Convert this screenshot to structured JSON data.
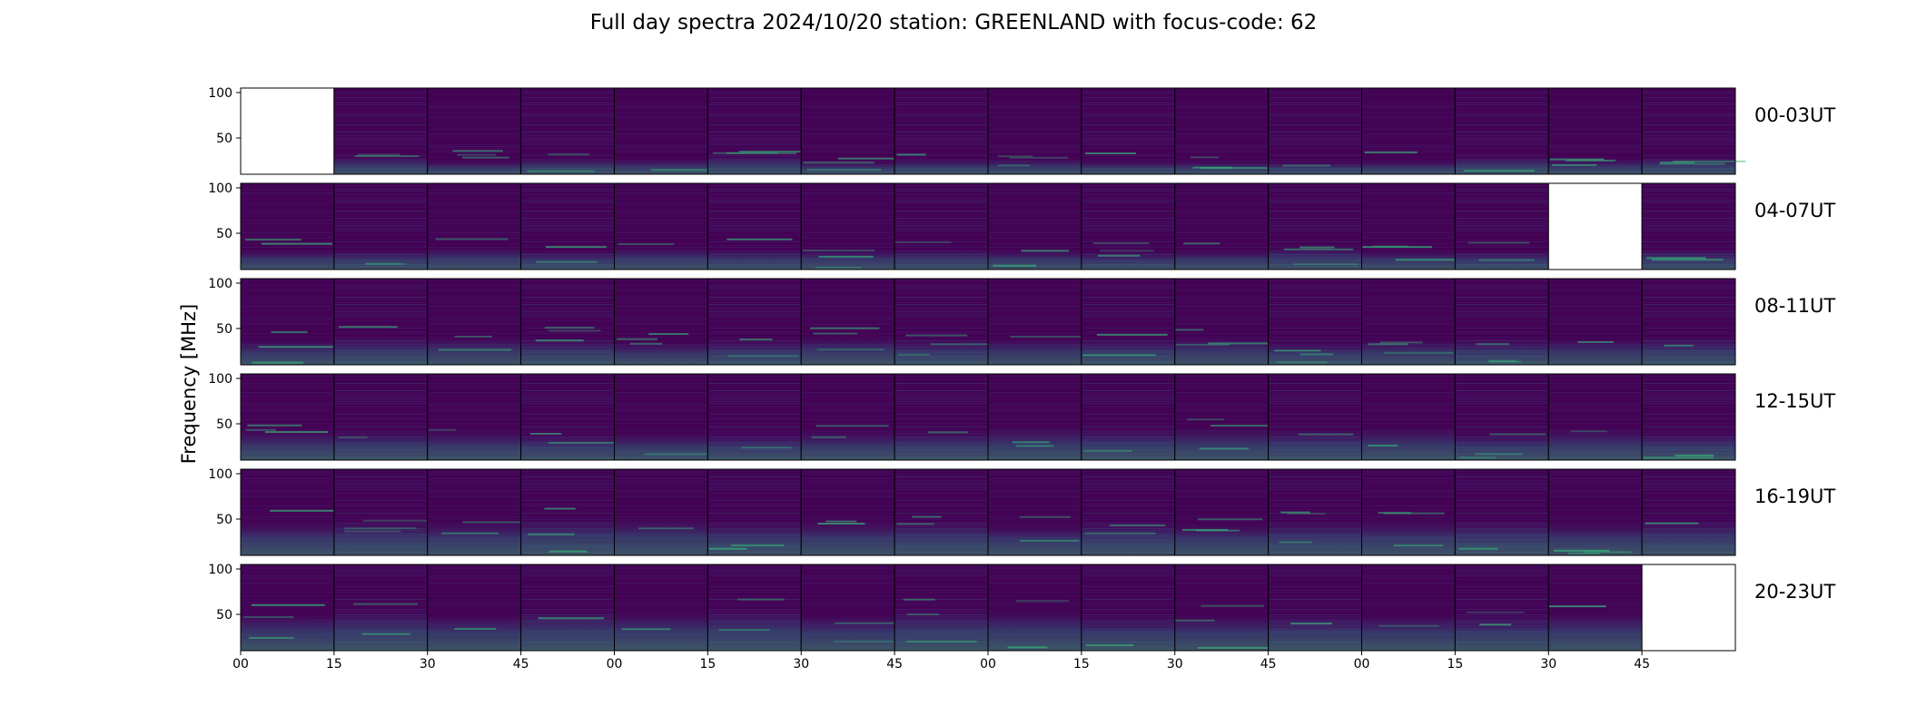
{
  "title": "Full day spectra 2024/10/20 station: GREENLAND with focus-code: 62",
  "colors": {
    "background": "#440154",
    "low": "#46075a",
    "high": "#35b779",
    "empty": "#ffffff"
  },
  "chart_data": {
    "type": "heatmap",
    "title": "Full day spectra 2024/10/20 station: GREENLAND with focus-code: 62",
    "ylabel": "Frequency [MHz]",
    "ylim": [
      10,
      105
    ],
    "yticks": [
      50,
      100
    ],
    "xticks": [
      "00",
      "15",
      "30",
      "45",
      "00",
      "15",
      "30",
      "45",
      "00",
      "15",
      "30",
      "45",
      "00",
      "15",
      "30",
      "45"
    ],
    "colormap": "viridis",
    "panels_per_row": 16,
    "rows": [
      {
        "label": "00-03UT",
        "empty_panels": [
          0
        ]
      },
      {
        "label": "04-07UT",
        "empty_panels": [
          14
        ]
      },
      {
        "label": "08-11UT",
        "empty_panels": []
      },
      {
        "label": "12-15UT",
        "empty_panels": []
      },
      {
        "label": "16-19UT",
        "empty_panels": []
      },
      {
        "label": "20-23UT",
        "empty_panels": [
          15
        ]
      }
    ]
  }
}
